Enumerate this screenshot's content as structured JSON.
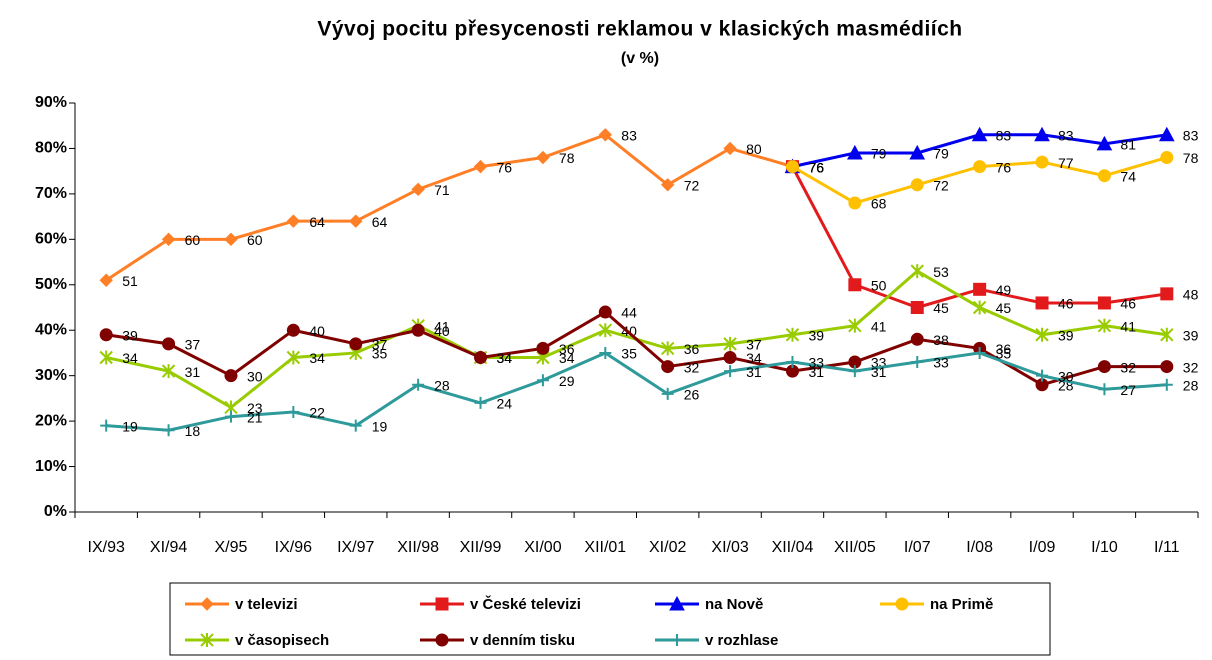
{
  "chart_data": {
    "type": "line",
    "title": "Vývoj pocitu přesycenosti  reklamou v klasických masmédiích",
    "subtitle": "(v %)",
    "categories": [
      "IX/93",
      "XI/94",
      "X/95",
      "IX/96",
      "IX/97",
      "XII/98",
      "XII/99",
      "XI/00",
      "XII/01",
      "XI/02",
      "XI/03",
      "XII/04",
      "XII/05",
      "I/07",
      "I/08",
      "I/09",
      "I/10",
      "I/11"
    ],
    "ylim": [
      0,
      90
    ],
    "yticks": [
      {
        "value": 0,
        "label": "0%"
      },
      {
        "value": 10,
        "label": "10%"
      },
      {
        "value": 20,
        "label": "20%"
      },
      {
        "value": 30,
        "label": "30%"
      },
      {
        "value": 40,
        "label": "40%"
      },
      {
        "value": 50,
        "label": "50%"
      },
      {
        "value": 60,
        "label": "60%"
      },
      {
        "value": 70,
        "label": "70%"
      },
      {
        "value": 80,
        "label": "80%"
      },
      {
        "value": 90,
        "label": "90%"
      }
    ],
    "series": [
      {
        "name": "v televizi",
        "color": "#ff7f27",
        "marker": "diamond",
        "values": [
          51,
          60,
          60,
          64,
          64,
          71,
          76,
          78,
          83,
          72,
          80,
          76,
          null,
          null,
          null,
          null,
          null,
          null
        ]
      },
      {
        "name": "v České televizi",
        "color": "#e31a1c",
        "marker": "square",
        "values": [
          null,
          null,
          null,
          null,
          null,
          null,
          null,
          null,
          null,
          null,
          null,
          76,
          50,
          45,
          49,
          46,
          46,
          48
        ]
      },
      {
        "name": "na Nově",
        "color": "#0000ee",
        "marker": "triangle",
        "values": [
          null,
          null,
          null,
          null,
          null,
          null,
          null,
          null,
          null,
          null,
          null,
          76,
          79,
          79,
          83,
          83,
          81,
          83
        ]
      },
      {
        "name": "na Primě",
        "color": "#ffc000",
        "marker": "circle",
        "values": [
          null,
          null,
          null,
          null,
          null,
          null,
          null,
          null,
          null,
          null,
          null,
          76,
          68,
          72,
          76,
          77,
          74,
          78
        ]
      },
      {
        "name": "v časopisech",
        "color": "#99cc00",
        "marker": "star",
        "values": [
          34,
          31,
          23,
          34,
          35,
          41,
          34,
          34,
          40,
          36,
          37,
          39,
          41,
          53,
          45,
          39,
          41,
          39
        ]
      },
      {
        "name": "v denním tisku",
        "color": "#800000",
        "marker": "circle",
        "values": [
          39,
          37,
          30,
          40,
          37,
          40,
          34,
          36,
          44,
          32,
          34,
          31,
          33,
          38,
          36,
          28,
          32,
          32
        ]
      },
      {
        "name": "v rozhlase",
        "color": "#2e9a9a",
        "marker": "plus",
        "values": [
          19,
          18,
          21,
          22,
          19,
          28,
          24,
          29,
          35,
          26,
          31,
          33,
          31,
          33,
          35,
          30,
          27,
          28
        ]
      }
    ]
  }
}
